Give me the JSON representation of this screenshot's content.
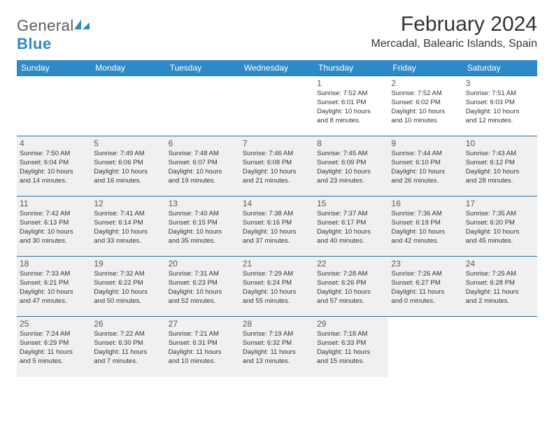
{
  "brand": {
    "name_a": "General",
    "name_b": "Blue"
  },
  "title": "February 2024",
  "location": "Mercadal, Balearic Islands, Spain",
  "colors": {
    "header_bg": "#2e8ac6",
    "header_text": "#ffffff",
    "rule": "#2e6fa0",
    "shade": "#f0f0f0",
    "text": "#333333",
    "brand_gray": "#5a5a5a",
    "brand_blue": "#2e8ac6"
  },
  "day_headers": [
    "Sunday",
    "Monday",
    "Tuesday",
    "Wednesday",
    "Thursday",
    "Friday",
    "Saturday"
  ],
  "weeks": [
    [
      null,
      null,
      null,
      null,
      {
        "n": "1",
        "sr": "Sunrise: 7:52 AM",
        "ss": "Sunset: 6:01 PM",
        "dl1": "Daylight: 10 hours",
        "dl2": "and 8 minutes."
      },
      {
        "n": "2",
        "sr": "Sunrise: 7:52 AM",
        "ss": "Sunset: 6:02 PM",
        "dl1": "Daylight: 10 hours",
        "dl2": "and 10 minutes."
      },
      {
        "n": "3",
        "sr": "Sunrise: 7:51 AM",
        "ss": "Sunset: 6:03 PM",
        "dl1": "Daylight: 10 hours",
        "dl2": "and 12 minutes."
      }
    ],
    [
      {
        "n": "4",
        "sr": "Sunrise: 7:50 AM",
        "ss": "Sunset: 6:04 PM",
        "dl1": "Daylight: 10 hours",
        "dl2": "and 14 minutes.",
        "shade": true
      },
      {
        "n": "5",
        "sr": "Sunrise: 7:49 AM",
        "ss": "Sunset: 6:06 PM",
        "dl1": "Daylight: 10 hours",
        "dl2": "and 16 minutes.",
        "shade": true
      },
      {
        "n": "6",
        "sr": "Sunrise: 7:48 AM",
        "ss": "Sunset: 6:07 PM",
        "dl1": "Daylight: 10 hours",
        "dl2": "and 19 minutes.",
        "shade": true
      },
      {
        "n": "7",
        "sr": "Sunrise: 7:46 AM",
        "ss": "Sunset: 6:08 PM",
        "dl1": "Daylight: 10 hours",
        "dl2": "and 21 minutes.",
        "shade": true
      },
      {
        "n": "8",
        "sr": "Sunrise: 7:45 AM",
        "ss": "Sunset: 6:09 PM",
        "dl1": "Daylight: 10 hours",
        "dl2": "and 23 minutes.",
        "shade": true
      },
      {
        "n": "9",
        "sr": "Sunrise: 7:44 AM",
        "ss": "Sunset: 6:10 PM",
        "dl1": "Daylight: 10 hours",
        "dl2": "and 26 minutes.",
        "shade": true
      },
      {
        "n": "10",
        "sr": "Sunrise: 7:43 AM",
        "ss": "Sunset: 6:12 PM",
        "dl1": "Daylight: 10 hours",
        "dl2": "and 28 minutes.",
        "shade": true
      }
    ],
    [
      {
        "n": "11",
        "sr": "Sunrise: 7:42 AM",
        "ss": "Sunset: 6:13 PM",
        "dl1": "Daylight: 10 hours",
        "dl2": "and 30 minutes.",
        "shade": true
      },
      {
        "n": "12",
        "sr": "Sunrise: 7:41 AM",
        "ss": "Sunset: 6:14 PM",
        "dl1": "Daylight: 10 hours",
        "dl2": "and 33 minutes.",
        "shade": true
      },
      {
        "n": "13",
        "sr": "Sunrise: 7:40 AM",
        "ss": "Sunset: 6:15 PM",
        "dl1": "Daylight: 10 hours",
        "dl2": "and 35 minutes.",
        "shade": true
      },
      {
        "n": "14",
        "sr": "Sunrise: 7:38 AM",
        "ss": "Sunset: 6:16 PM",
        "dl1": "Daylight: 10 hours",
        "dl2": "and 37 minutes.",
        "shade": true
      },
      {
        "n": "15",
        "sr": "Sunrise: 7:37 AM",
        "ss": "Sunset: 6:17 PM",
        "dl1": "Daylight: 10 hours",
        "dl2": "and 40 minutes.",
        "shade": true
      },
      {
        "n": "16",
        "sr": "Sunrise: 7:36 AM",
        "ss": "Sunset: 6:19 PM",
        "dl1": "Daylight: 10 hours",
        "dl2": "and 42 minutes.",
        "shade": true
      },
      {
        "n": "17",
        "sr": "Sunrise: 7:35 AM",
        "ss": "Sunset: 6:20 PM",
        "dl1": "Daylight: 10 hours",
        "dl2": "and 45 minutes.",
        "shade": true
      }
    ],
    [
      {
        "n": "18",
        "sr": "Sunrise: 7:33 AM",
        "ss": "Sunset: 6:21 PM",
        "dl1": "Daylight: 10 hours",
        "dl2": "and 47 minutes.",
        "shade": true
      },
      {
        "n": "19",
        "sr": "Sunrise: 7:32 AM",
        "ss": "Sunset: 6:22 PM",
        "dl1": "Daylight: 10 hours",
        "dl2": "and 50 minutes.",
        "shade": true
      },
      {
        "n": "20",
        "sr": "Sunrise: 7:31 AM",
        "ss": "Sunset: 6:23 PM",
        "dl1": "Daylight: 10 hours",
        "dl2": "and 52 minutes.",
        "shade": true
      },
      {
        "n": "21",
        "sr": "Sunrise: 7:29 AM",
        "ss": "Sunset: 6:24 PM",
        "dl1": "Daylight: 10 hours",
        "dl2": "and 55 minutes.",
        "shade": true
      },
      {
        "n": "22",
        "sr": "Sunrise: 7:28 AM",
        "ss": "Sunset: 6:26 PM",
        "dl1": "Daylight: 10 hours",
        "dl2": "and 57 minutes.",
        "shade": true
      },
      {
        "n": "23",
        "sr": "Sunrise: 7:26 AM",
        "ss": "Sunset: 6:27 PM",
        "dl1": "Daylight: 11 hours",
        "dl2": "and 0 minutes.",
        "shade": true
      },
      {
        "n": "24",
        "sr": "Sunrise: 7:25 AM",
        "ss": "Sunset: 6:28 PM",
        "dl1": "Daylight: 11 hours",
        "dl2": "and 2 minutes.",
        "shade": true
      }
    ],
    [
      {
        "n": "25",
        "sr": "Sunrise: 7:24 AM",
        "ss": "Sunset: 6:29 PM",
        "dl1": "Daylight: 11 hours",
        "dl2": "and 5 minutes.",
        "shade": true
      },
      {
        "n": "26",
        "sr": "Sunrise: 7:22 AM",
        "ss": "Sunset: 6:30 PM",
        "dl1": "Daylight: 11 hours",
        "dl2": "and 7 minutes.",
        "shade": true
      },
      {
        "n": "27",
        "sr": "Sunrise: 7:21 AM",
        "ss": "Sunset: 6:31 PM",
        "dl1": "Daylight: 11 hours",
        "dl2": "and 10 minutes.",
        "shade": true
      },
      {
        "n": "28",
        "sr": "Sunrise: 7:19 AM",
        "ss": "Sunset: 6:32 PM",
        "dl1": "Daylight: 11 hours",
        "dl2": "and 13 minutes.",
        "shade": true
      },
      {
        "n": "29",
        "sr": "Sunrise: 7:18 AM",
        "ss": "Sunset: 6:33 PM",
        "dl1": "Daylight: 11 hours",
        "dl2": "and 15 minutes.",
        "shade": true
      },
      null,
      null
    ]
  ]
}
